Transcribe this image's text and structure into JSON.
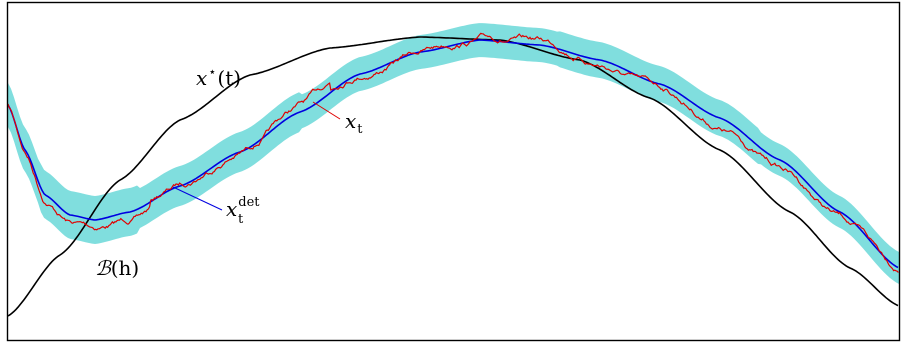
{
  "labels": {
    "reference_curve": {
      "base": "x",
      "superscript": "⋆",
      "suffix": "(t)"
    },
    "sample_path": {
      "base": "x",
      "subscript": "t"
    },
    "deterministic": {
      "base": "x",
      "superscript": "det",
      "subscript": "t"
    },
    "neighbourhood": {
      "symbol": "ℬ",
      "suffix": "(h)"
    }
  },
  "colors": {
    "frame": "#000000",
    "reference_curve": "#000000",
    "sample_path": "#e00000",
    "deterministic": "#0000e0",
    "neighbourhood": "#80dede"
  }
}
